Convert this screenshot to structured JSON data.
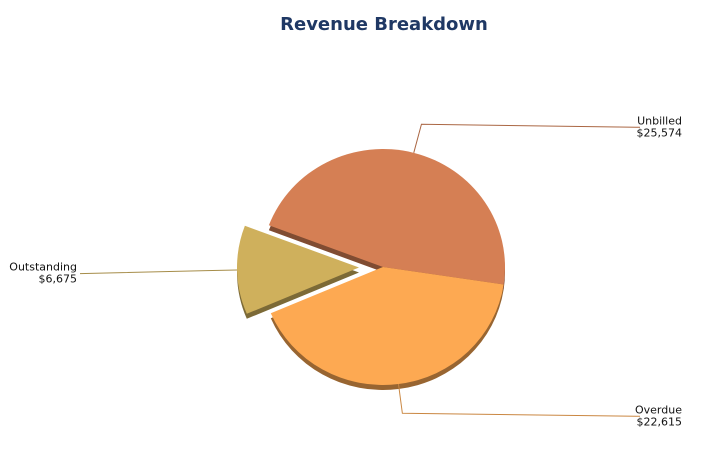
{
  "chart_data": {
    "type": "pie",
    "title": "Revenue Breakdown",
    "categories": [
      "Unbilled",
      "Overdue",
      "Outstanding"
    ],
    "values": [
      25574,
      22615,
      6675
    ],
    "value_labels": [
      "$25,574",
      "$22,615",
      "$6,675"
    ],
    "colors": [
      "#d57f54",
      "#fda952",
      "#cfb05c"
    ],
    "exploded": [
      "Outstanding"
    ]
  }
}
